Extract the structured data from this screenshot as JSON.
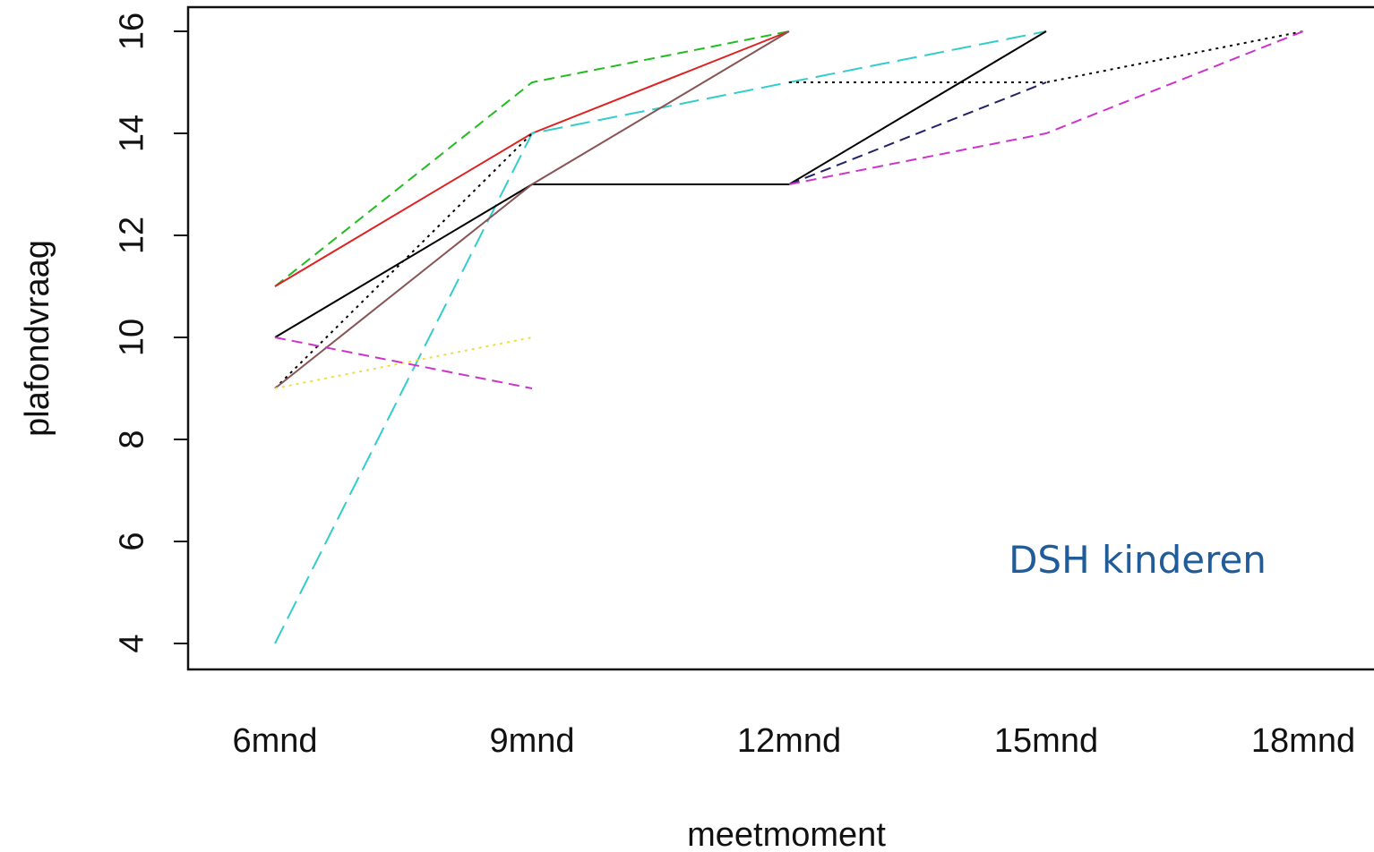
{
  "chart_data": {
    "type": "line",
    "title": "",
    "xlabel": "meetmoment",
    "ylabel": "plafondvraag",
    "categories": [
      "6mnd",
      "9mnd",
      "12mnd",
      "15mnd",
      "18mnd"
    ],
    "yticks": [
      "4",
      "6",
      "8",
      "10",
      "12",
      "14",
      "16"
    ],
    "ylim": [
      4,
      16
    ],
    "grid": false,
    "legend": "none",
    "annotation": {
      "text": "DSH kinderen",
      "color": "#1f5c99"
    },
    "series": [
      {
        "values": [
          11,
          15,
          16,
          null,
          null
        ],
        "color": "#22bb22",
        "dash": "dashed"
      },
      {
        "values": [
          11,
          14,
          16,
          null,
          null
        ],
        "color": "#dd2222",
        "dash": "solid"
      },
      {
        "values": [
          4,
          14,
          15,
          16,
          null
        ],
        "color": "#33cccc",
        "dash": "longdash"
      },
      {
        "values": [
          10,
          13,
          13,
          16,
          null
        ],
        "color": "#000000",
        "dash": "solid"
      },
      {
        "values": [
          9,
          14,
          null,
          null,
          null
        ],
        "color": "#000000",
        "dash": "dotted"
      },
      {
        "values": [
          9,
          13,
          16,
          null,
          null
        ],
        "color": "#885555",
        "dash": "solid"
      },
      {
        "values": [
          9,
          10,
          null,
          null,
          null
        ],
        "color": "#eedd44",
        "dash": "dotted"
      },
      {
        "values": [
          10,
          9,
          null,
          null,
          null
        ],
        "color": "#cc33cc",
        "dash": "dashed"
      },
      {
        "values": [
          null,
          null,
          15,
          15,
          16
        ],
        "color": "#000000",
        "dash": "dotted"
      },
      {
        "values": [
          null,
          null,
          13,
          15,
          null
        ],
        "color": "#222266",
        "dash": "dashed"
      },
      {
        "values": [
          null,
          null,
          13,
          14,
          16
        ],
        "color": "#cc33cc",
        "dash": "dashed"
      }
    ]
  }
}
